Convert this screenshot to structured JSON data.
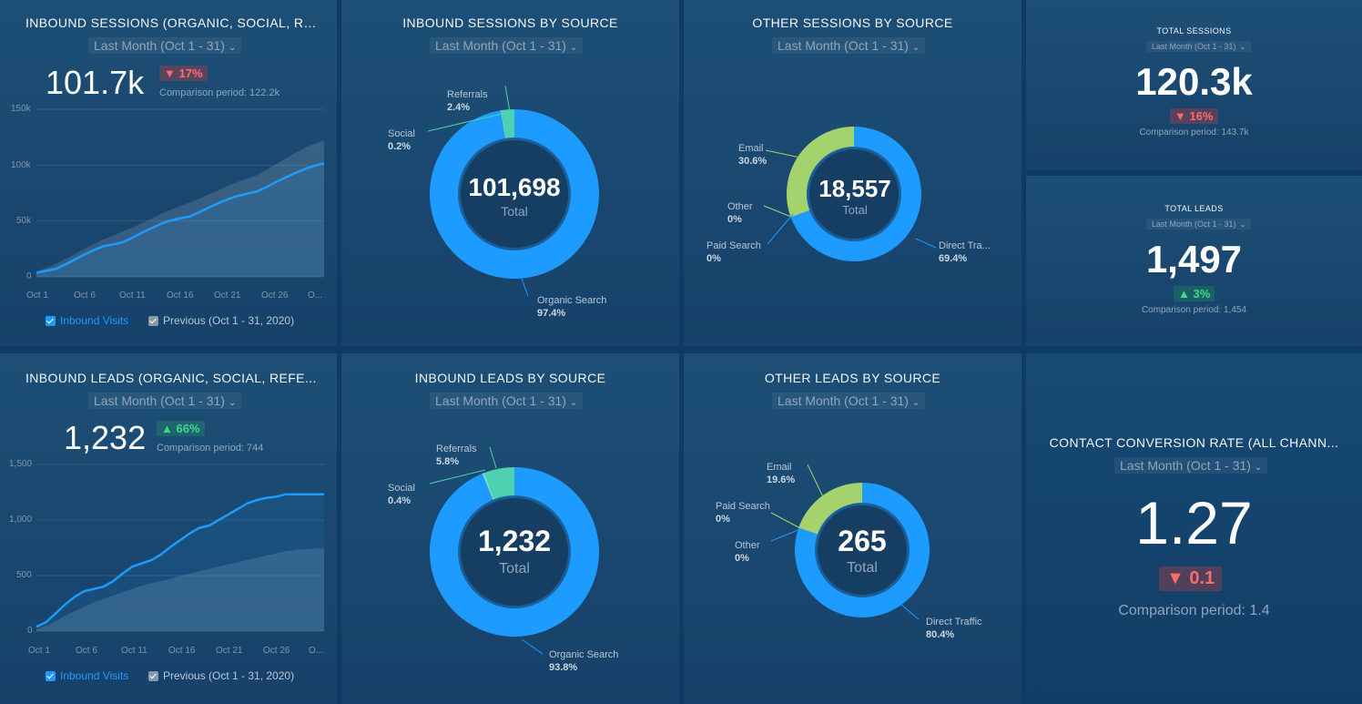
{
  "colors": {
    "blue": "#1e9bff",
    "green": "#a4d36e",
    "teal": "#4dd1b0",
    "down": "#ff6b6b",
    "up": "#3ddc84"
  },
  "period_label": "Last Month (Oct 1 - 31)",
  "tiles": {
    "inbound_sessions": {
      "title": "INBOUND SESSIONS (ORGANIC, SOCIAL, RE...",
      "period": "Last Month (Oct 1 - 31)",
      "value": "101.7k",
      "change": "▼ 17%",
      "comparison": "Comparison period: 122.2k",
      "legend_current": "Inbound Visits",
      "legend_previous": "Previous (Oct 1 - 31, 2020)"
    },
    "inbound_sessions_by_source": {
      "title": "INBOUND SESSIONS BY SOURCE",
      "period": "Last Month (Oct 1 - 31)",
      "total_value": "101,698",
      "total_label": "Total",
      "slices": [
        {
          "name": "Referrals",
          "pct": "2.4%"
        },
        {
          "name": "Social",
          "pct": "0.2%"
        },
        {
          "name": "Organic Search",
          "pct": "97.4%"
        }
      ]
    },
    "other_sessions_by_source": {
      "title": "OTHER SESSIONS BY SOURCE",
      "period": "Last Month (Oct 1 - 31)",
      "total_value": "18,557",
      "total_label": "Total",
      "slices": [
        {
          "name": "Email",
          "pct": "30.6%"
        },
        {
          "name": "Other",
          "pct": "0%"
        },
        {
          "name": "Paid Search",
          "pct": "0%"
        },
        {
          "name": "Direct Tra...",
          "pct": "69.4%"
        }
      ]
    },
    "total_sessions": {
      "title": "TOTAL SESSIONS",
      "period": "Last Month (Oct 1 - 31)",
      "value": "120.3k",
      "change": "▼ 16%",
      "comparison": "Comparison period: 143.7k"
    },
    "total_leads": {
      "title": "TOTAL LEADS",
      "period": "Last Month (Oct 1 - 31)",
      "value": "1,497",
      "change": "▲ 3%",
      "comparison": "Comparison period: 1,454"
    },
    "inbound_leads": {
      "title": "INBOUND LEADS (ORGANIC, SOCIAL, REFE...",
      "period": "Last Month (Oct 1 - 31)",
      "value": "1,232",
      "change": "▲ 66%",
      "comparison": "Comparison period: 744",
      "legend_current": "Inbound Visits",
      "legend_previous": "Previous (Oct 1 - 31, 2020)"
    },
    "inbound_leads_by_source": {
      "title": "INBOUND LEADS BY SOURCE",
      "period": "Last Month (Oct 1 - 31)",
      "total_value": "1,232",
      "total_label": "Total",
      "slices": [
        {
          "name": "Referrals",
          "pct": "5.8%"
        },
        {
          "name": "Social",
          "pct": "0.4%"
        },
        {
          "name": "Organic Search",
          "pct": "93.8%"
        }
      ]
    },
    "other_leads_by_source": {
      "title": "OTHER LEADS BY SOURCE",
      "period": "Last Month (Oct 1 - 31)",
      "total_value": "265",
      "total_label": "Total",
      "slices": [
        {
          "name": "Email",
          "pct": "19.6%"
        },
        {
          "name": "Paid Search",
          "pct": "0%"
        },
        {
          "name": "Other",
          "pct": "0%"
        },
        {
          "name": "Direct Traffic",
          "pct": "80.4%"
        }
      ]
    },
    "contact_conversion": {
      "title": "CONTACT CONVERSION RATE (ALL CHANN...",
      "period": "Last Month (Oct 1 - 31)",
      "value": "1.27",
      "change": "▼ 0.1",
      "comparison": "Comparison period: 1.4"
    }
  },
  "chart_data": [
    {
      "type": "area",
      "id": "sessions",
      "title": "INBOUND SESSIONS (ORGANIC, SOCIAL, RE...",
      "x_ticks": [
        "Oct 1",
        "Oct 6",
        "Oct 11",
        "Oct 16",
        "Oct 21",
        "Oct 26",
        "O..."
      ],
      "y_ticks": [
        "0",
        "50k",
        "100k",
        "150k"
      ],
      "ylim": [
        0,
        150000
      ],
      "x": [
        1,
        2,
        3,
        4,
        5,
        6,
        7,
        8,
        9,
        10,
        11,
        12,
        13,
        14,
        15,
        16,
        17,
        18,
        19,
        20,
        21,
        22,
        23,
        24,
        25,
        26,
        27,
        28,
        29,
        30,
        31
      ],
      "series": [
        {
          "name": "Inbound Visits",
          "values": [
            3500,
            5500,
            7000,
            11000,
            15500,
            20000,
            24000,
            27500,
            29000,
            31000,
            35000,
            39500,
            43500,
            47500,
            50500,
            52500,
            54000,
            58000,
            62000,
            66000,
            69500,
            72500,
            74500,
            76500,
            80500,
            85000,
            89000,
            93000,
            96500,
            99500,
            101700
          ]
        },
        {
          "name": "Previous (Oct 1 - 31, 2020)",
          "values": [
            5000,
            8000,
            11500,
            16000,
            20500,
            25000,
            29500,
            33500,
            37000,
            40500,
            44000,
            48000,
            52000,
            56500,
            60000,
            63500,
            66500,
            70000,
            74000,
            77500,
            81500,
            85000,
            88000,
            91000,
            96000,
            101000,
            106000,
            111000,
            115500,
            119000,
            122200
          ]
        }
      ]
    },
    {
      "type": "area",
      "id": "leads",
      "title": "INBOUND LEADS (ORGANIC, SOCIAL, REFE...",
      "x_ticks": [
        "Oct 1",
        "Oct 6",
        "Oct 11",
        "Oct 16",
        "Oct 21",
        "Oct 26",
        "O..."
      ],
      "y_ticks": [
        "0",
        "500",
        "1,000",
        "1,500"
      ],
      "ylim": [
        0,
        1500
      ],
      "x": [
        1,
        2,
        3,
        4,
        5,
        6,
        7,
        8,
        9,
        10,
        11,
        12,
        13,
        14,
        15,
        16,
        17,
        18,
        19,
        20,
        21,
        22,
        23,
        24,
        25,
        26,
        27,
        28,
        29,
        30,
        31
      ],
      "series": [
        {
          "name": "Inbound Visits",
          "values": [
            40,
            80,
            160,
            240,
            310,
            360,
            380,
            400,
            450,
            520,
            580,
            610,
            640,
            690,
            760,
            820,
            880,
            930,
            950,
            1000,
            1050,
            1100,
            1150,
            1180,
            1200,
            1210,
            1232,
            1232,
            1232,
            1232,
            1232
          ]
        },
        {
          "name": "Previous (Oct 1 - 31, 2020)",
          "values": [
            20,
            50,
            90,
            140,
            180,
            220,
            260,
            290,
            320,
            350,
            380,
            410,
            430,
            450,
            470,
            500,
            520,
            540,
            560,
            580,
            600,
            620,
            640,
            660,
            680,
            700,
            720,
            730,
            740,
            744,
            744
          ]
        }
      ]
    },
    {
      "type": "pie",
      "id": "sessions-source",
      "title": "INBOUND SESSIONS BY SOURCE",
      "categories": [
        "Organic Search",
        "Social",
        "Referrals"
      ],
      "values": [
        97.4,
        0.2,
        2.4
      ]
    },
    {
      "type": "pie",
      "id": "other-sessions",
      "title": "OTHER SESSIONS BY SOURCE",
      "categories": [
        "Direct Traffic",
        "Paid Search",
        "Other",
        "Email"
      ],
      "values": [
        69.4,
        0,
        0,
        30.6
      ]
    },
    {
      "type": "pie",
      "id": "leads-source",
      "title": "INBOUND LEADS BY SOURCE",
      "categories": [
        "Organic Search",
        "Social",
        "Referrals"
      ],
      "values": [
        93.8,
        0.4,
        5.8
      ]
    },
    {
      "type": "pie",
      "id": "other-leads",
      "title": "OTHER LEADS BY SOURCE",
      "categories": [
        "Direct Traffic",
        "Other",
        "Paid Search",
        "Email"
      ],
      "values": [
        80.4,
        0,
        0,
        19.6
      ]
    }
  ]
}
